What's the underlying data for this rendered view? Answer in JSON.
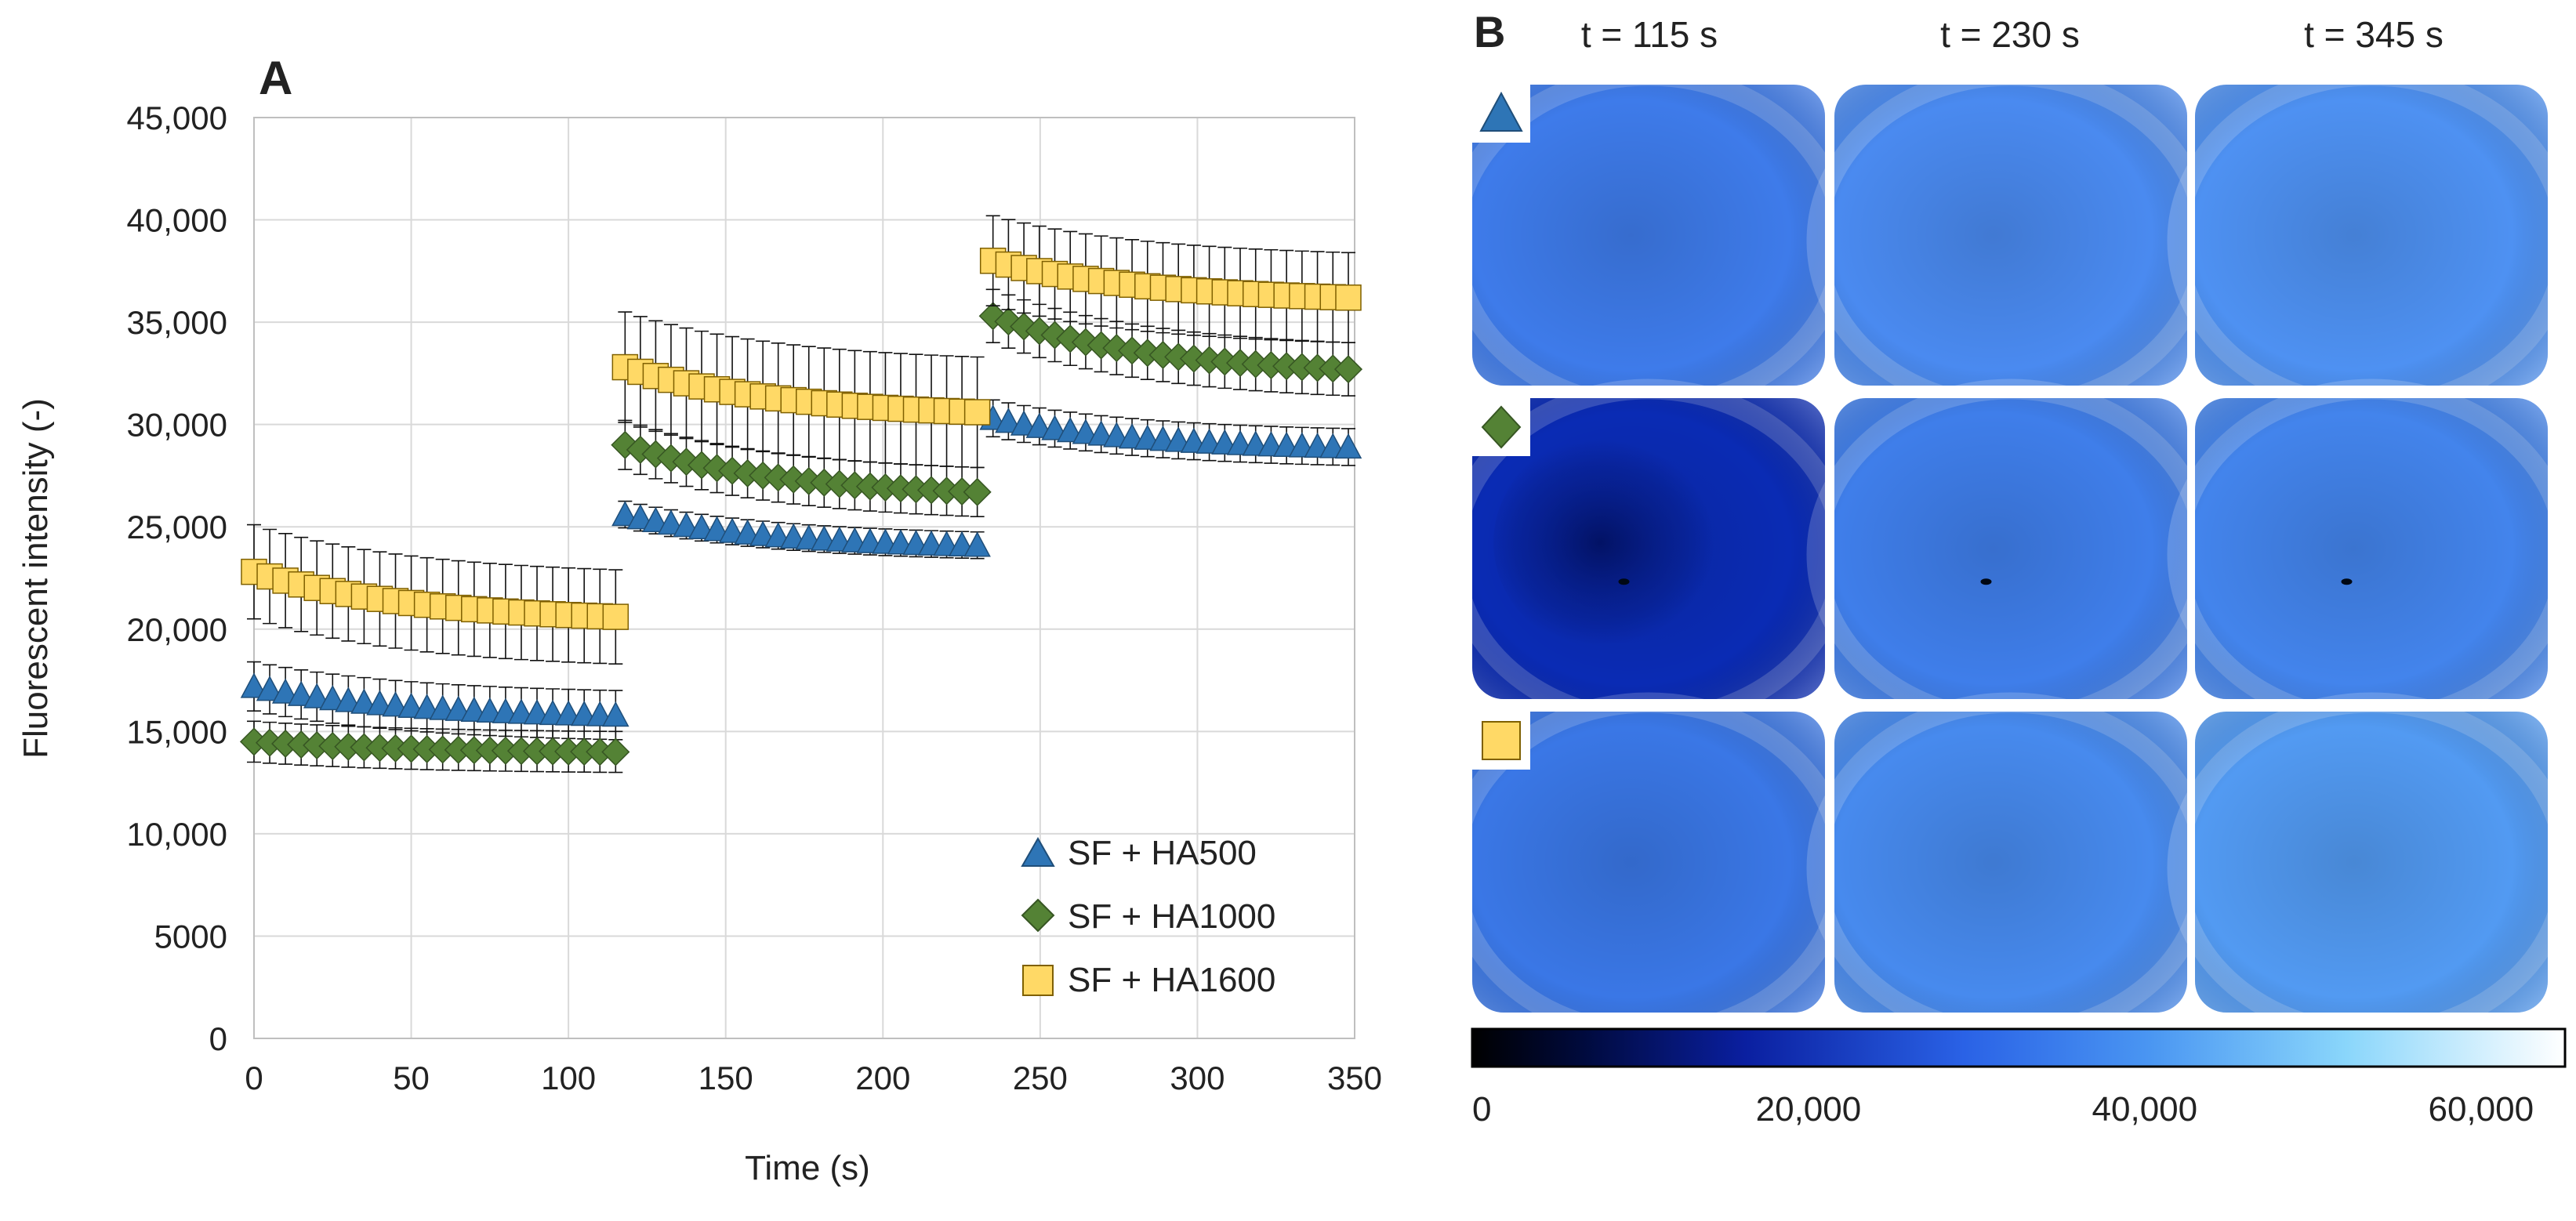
{
  "panel_a": {
    "label": "A",
    "chart_data": {
      "type": "scatter",
      "title": "",
      "xlabel": "Time (s)",
      "ylabel": "Fluorescent intensity (-)",
      "xlim": [
        0,
        350
      ],
      "ylim": [
        0,
        45000
      ],
      "x_ticks": [
        0,
        50,
        100,
        150,
        200,
        250,
        300,
        350
      ],
      "x_tick_labels": [
        "0",
        "50",
        "100",
        "150",
        "200",
        "250",
        "300",
        "350"
      ],
      "y_ticks": [
        0,
        5000,
        10000,
        15000,
        20000,
        25000,
        30000,
        35000,
        40000,
        45000
      ],
      "y_tick_labels": [
        "0",
        "5000",
        "10,000",
        "15,000",
        "20,000",
        "25,000",
        "30,000",
        "35,000",
        "40,000",
        "45,000"
      ],
      "grid": true,
      "legend_position": "bottom-right",
      "series": [
        {
          "name": "SF + HA500",
          "marker": "triangle",
          "color": "#2E75B6",
          "segments": [
            {
              "x_start": 0,
              "x_end": 115,
              "y_start": 17200,
              "y_end": 15800,
              "error": 1200
            },
            {
              "x_start": 118,
              "x_end": 230,
              "y_start": 25600,
              "y_end": 24100,
              "error": 650
            },
            {
              "x_start": 235,
              "x_end": 348,
              "y_start": 30300,
              "y_end": 28900,
              "error": 900
            }
          ]
        },
        {
          "name": "SF + HA1000",
          "marker": "diamond",
          "color": "#548235",
          "segments": [
            {
              "x_start": 0,
              "x_end": 115,
              "y_start": 14500,
              "y_end": 14000,
              "error": 1000
            },
            {
              "x_start": 118,
              "x_end": 230,
              "y_start": 29000,
              "y_end": 26700,
              "error": 1200
            },
            {
              "x_start": 235,
              "x_end": 348,
              "y_start": 35300,
              "y_end": 32700,
              "error": 1300
            }
          ]
        },
        {
          "name": "SF + HA1600",
          "marker": "square",
          "color": "#FFD966",
          "segments": [
            {
              "x_start": 0,
              "x_end": 115,
              "y_start": 22800,
              "y_end": 20600,
              "error": 2300
            },
            {
              "x_start": 118,
              "x_end": 230,
              "y_start": 32800,
              "y_end": 30600,
              "error": 2700
            },
            {
              "x_start": 235,
              "x_end": 348,
              "y_start": 38000,
              "y_end": 36200,
              "error": 2200
            }
          ]
        }
      ]
    }
  },
  "panel_b": {
    "label": "B",
    "column_titles": [
      "t = 115 s",
      "t = 230 s",
      "t = 345 s"
    ],
    "rows": [
      {
        "series": "SF + HA500",
        "marker": "triangle",
        "color": "#2E75B6",
        "tiles": [
          "#3E7BEA",
          "#4A8AF0",
          "#4E91F2"
        ]
      },
      {
        "series": "SF + HA1000",
        "marker": "diamond",
        "color": "#548235",
        "tiles": [
          "#0A2BB4",
          "#3F7EEA",
          "#4384EC"
        ]
      },
      {
        "series": "SF + HA1600",
        "marker": "square",
        "color": "#FFD966",
        "tiles": [
          "#3A77E6",
          "#478AEE",
          "#529AF2"
        ]
      }
    ],
    "colorbar": {
      "min": 0,
      "max": 65000,
      "ticks": [
        0,
        20000,
        40000,
        60000
      ],
      "tick_labels": [
        "0",
        "20,000",
        "40,000",
        "60,000"
      ]
    }
  }
}
